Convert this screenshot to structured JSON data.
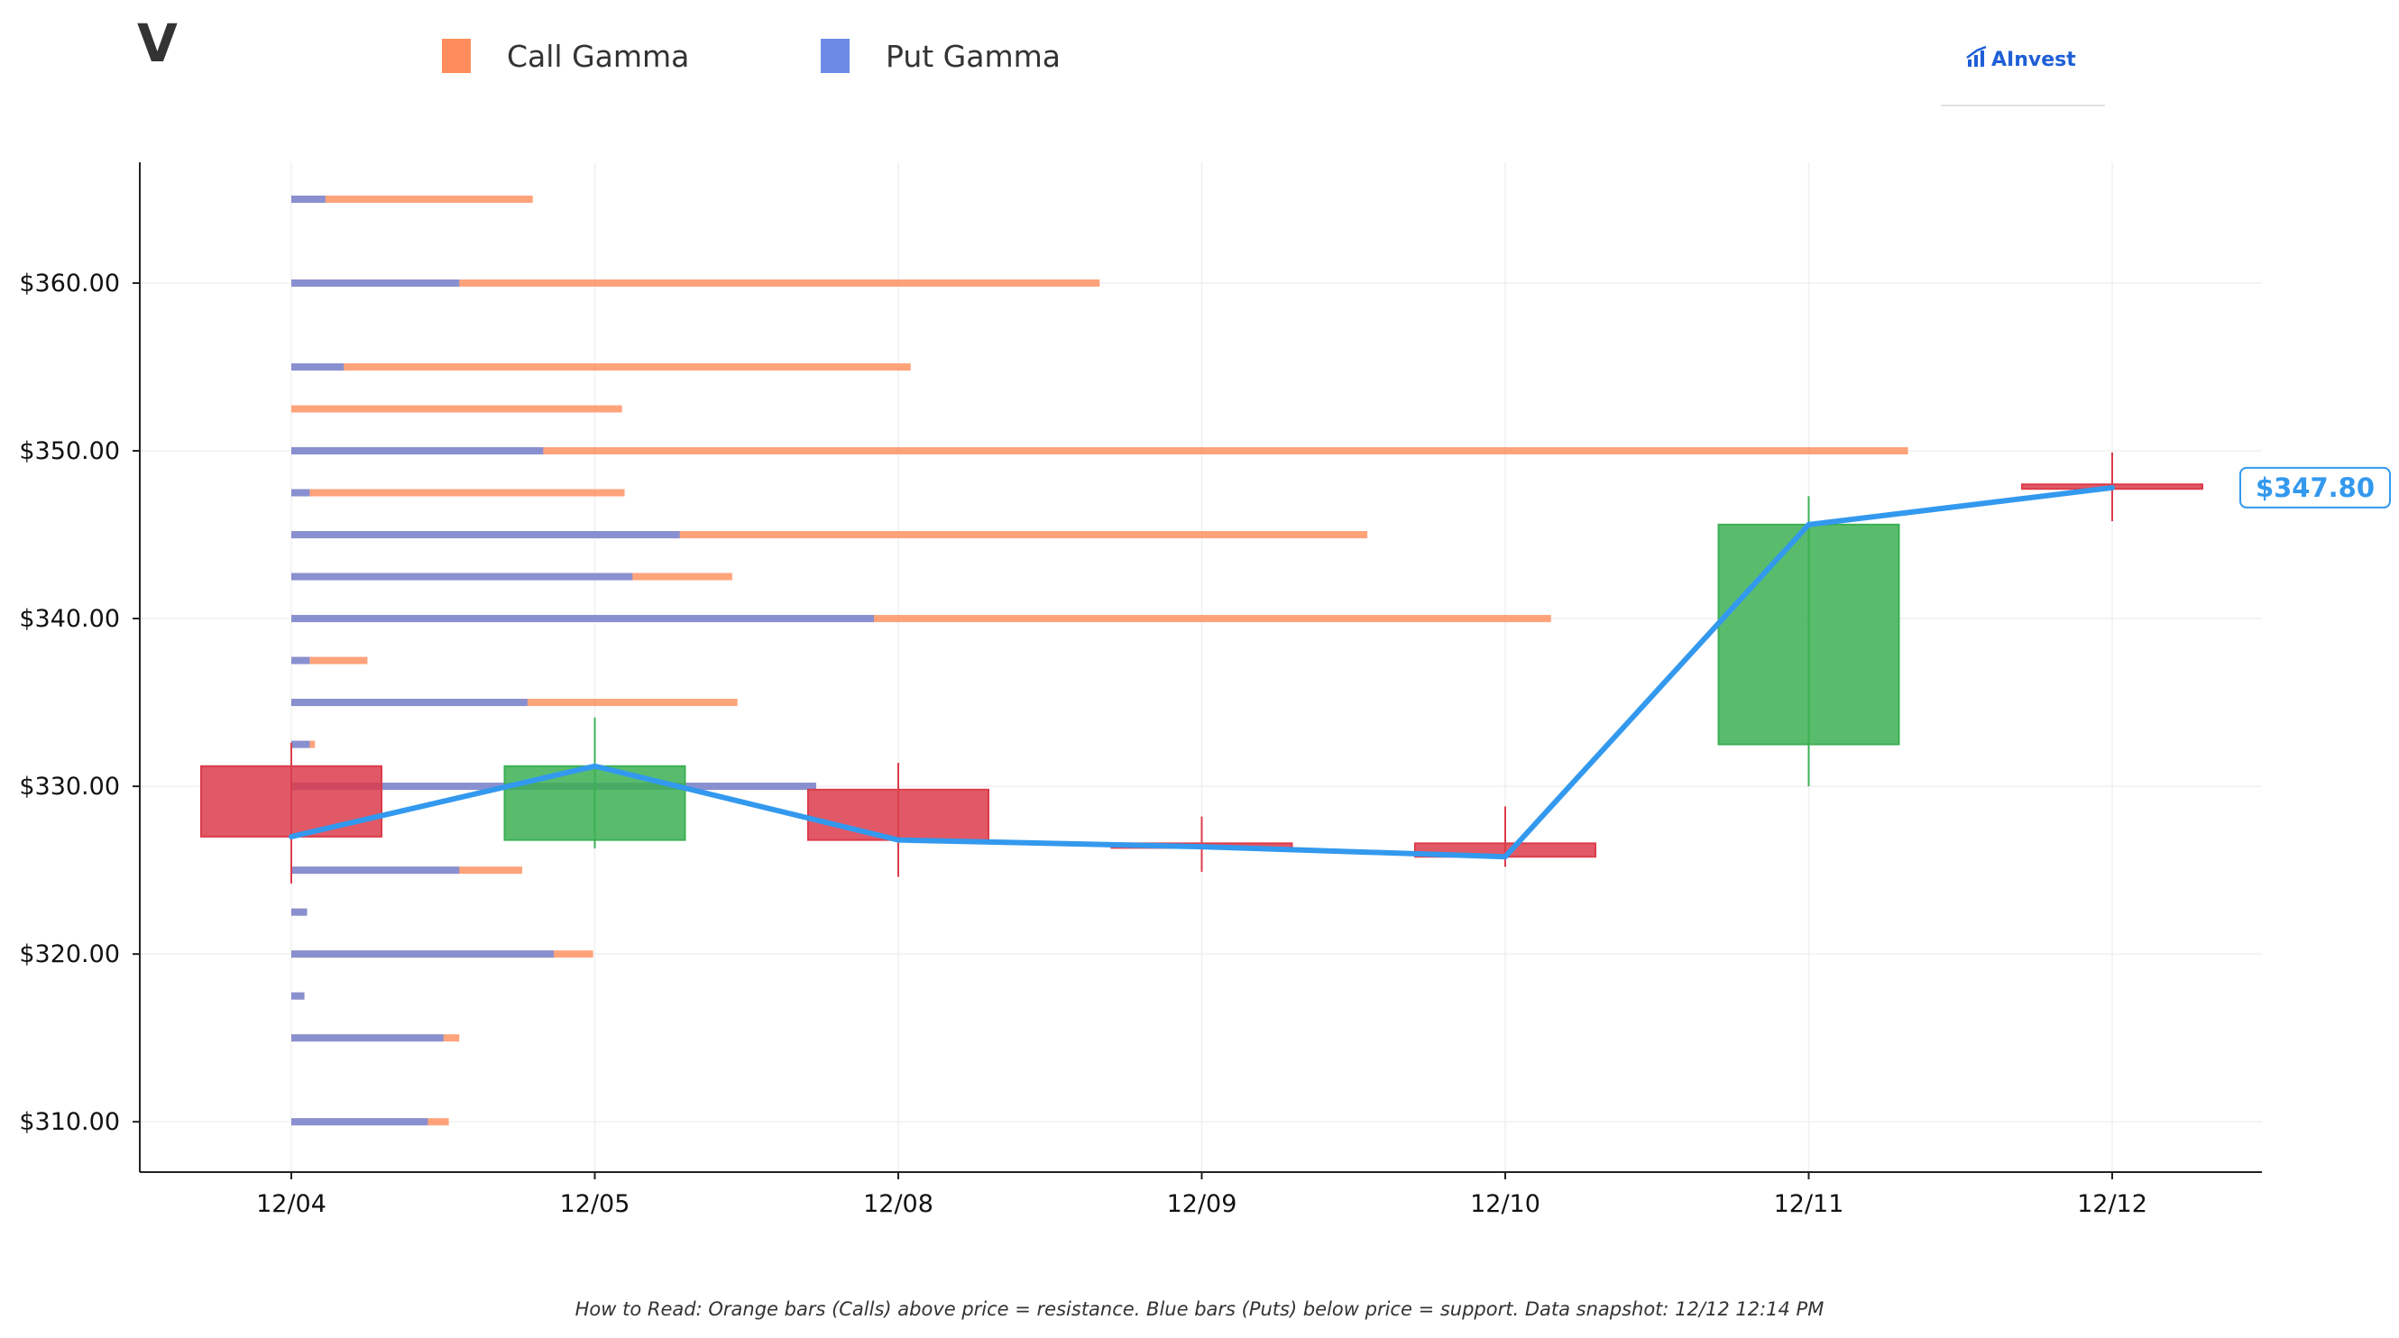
{
  "ticker": "V",
  "legend": {
    "call_label": "Call Gamma",
    "put_label": "Put Gamma"
  },
  "brand": {
    "name": "AInvest"
  },
  "footnote": "How to Read: Orange bars (Calls) above price = resistance. Blue bars (Puts) below price = support. Data snapshot: 12/12 12:14 PM",
  "colors": {
    "call": "#ff8c5a",
    "put": "#6b8be6",
    "up": "#3cb054",
    "down": "#dc3c4b",
    "price_line": "#3399ee",
    "brand": "#1f5fd6"
  },
  "chart_data": {
    "type": "candlestick",
    "categories": [
      "12/04",
      "12/05",
      "12/08",
      "12/09",
      "12/10",
      "12/11",
      "12/12"
    ],
    "ohlc": [
      {
        "date": "12/04",
        "open": 331.2,
        "high": 332.6,
        "low": 324.2,
        "close": 327.0
      },
      {
        "date": "12/05",
        "open": 326.8,
        "high": 334.1,
        "low": 326.3,
        "close": 331.2
      },
      {
        "date": "12/08",
        "open": 329.8,
        "high": 331.4,
        "low": 324.6,
        "close": 326.8
      },
      {
        "date": "12/09",
        "open": 326.6,
        "high": 328.2,
        "low": 324.9,
        "close": 326.4
      },
      {
        "date": "12/10",
        "open": 326.6,
        "high": 328.8,
        "low": 325.2,
        "close": 325.8
      },
      {
        "date": "12/11",
        "open": 332.5,
        "high": 347.3,
        "low": 330.0,
        "close": 345.6
      },
      {
        "date": "12/12",
        "open": 348.0,
        "high": 349.9,
        "low": 345.8,
        "close": 347.8
      }
    ],
    "price_line": [
      327.0,
      331.2,
      326.8,
      326.4,
      325.8,
      345.6,
      347.8
    ],
    "last_price_label": "$347.80",
    "gamma_levels": [
      {
        "strike": 365.0,
        "put": 0.065,
        "call": 0.46
      },
      {
        "strike": 360.0,
        "put": 0.32,
        "call": 1.54
      },
      {
        "strike": 355.0,
        "put": 0.1,
        "call": 1.18
      },
      {
        "strike": 352.5,
        "put": 0.0,
        "call": 0.63
      },
      {
        "strike": 350.0,
        "put": 0.48,
        "call": 3.08
      },
      {
        "strike": 347.5,
        "put": 0.035,
        "call": 0.635
      },
      {
        "strike": 345.0,
        "put": 0.74,
        "call": 2.05
      },
      {
        "strike": 342.5,
        "put": 0.65,
        "call": 0.84
      },
      {
        "strike": 340.0,
        "put": 1.11,
        "call": 2.4
      },
      {
        "strike": 337.5,
        "put": 0.035,
        "call": 0.145
      },
      {
        "strike": 335.0,
        "put": 0.45,
        "call": 0.85
      },
      {
        "strike": 332.5,
        "put": 0.035,
        "call": 0.045
      },
      {
        "strike": 330.0,
        "put": 1.0,
        "call": 1.0
      },
      {
        "strike": 325.0,
        "put": 0.32,
        "call": 0.44
      },
      {
        "strike": 322.5,
        "put": 0.03,
        "call": 0.03
      },
      {
        "strike": 320.0,
        "put": 0.5,
        "call": 0.575
      },
      {
        "strike": 317.5,
        "put": 0.025,
        "call": 0.025
      },
      {
        "strike": 315.0,
        "put": 0.29,
        "call": 0.32
      },
      {
        "strike": 310.0,
        "put": 0.26,
        "call": 0.3
      }
    ],
    "y_ticks": [
      310,
      320,
      330,
      340,
      350,
      360
    ],
    "y_tick_labels": [
      "$310.00",
      "$320.00",
      "$330.00",
      "$340.00",
      "$350.00",
      "$360.00"
    ],
    "ylim": [
      307,
      367.2
    ],
    "grid": true,
    "legend_position": "top-left"
  }
}
